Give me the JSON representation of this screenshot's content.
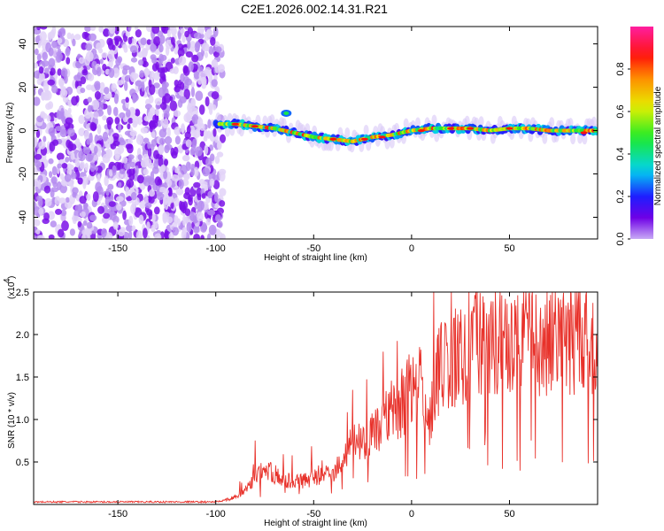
{
  "title": "C2E1.2026.002.14.31.R21",
  "chart_data": [
    {
      "type": "heatmap",
      "title": "C2E1.2026.002.14.31.R21",
      "xlabel": "Height of straight line (km)",
      "ylabel": "Frequency (Hz)",
      "xlim": [
        -193,
        95
      ],
      "ylim": [
        -50,
        48
      ],
      "xticks": [
        -150,
        -100,
        -50,
        0,
        50
      ],
      "yticks": [
        -40,
        -20,
        0,
        20,
        40
      ],
      "colorbar": {
        "label": "Normalized spectral amplitude",
        "range": [
          0.0,
          1.0
        ],
        "ticks": [
          0.0,
          0.2,
          0.4,
          0.6,
          0.8
        ],
        "tick_labels": [
          "0.0",
          "0.2",
          "0.4",
          "0.6",
          "0.8"
        ]
      },
      "features": {
        "noise_region_km": [
          -193,
          -100
        ],
        "ridge": {
          "x": [
            -100,
            -90,
            -80,
            -70,
            -60,
            -50,
            -40,
            -30,
            -20,
            -10,
            0,
            10,
            20,
            30,
            40,
            50,
            60,
            70,
            80,
            95
          ],
          "y": [
            3,
            3,
            2,
            1,
            -1,
            -3,
            -4,
            -5,
            -3,
            -2,
            0,
            1,
            1,
            1,
            0,
            1,
            1,
            0,
            0,
            0
          ]
        }
      }
    },
    {
      "type": "line",
      "xlabel": "Height of straight line (km)",
      "ylabel": "SNR (10 * v/v)",
      "multiplier_label": "(x10",
      "multiplier_exponent": "4",
      "xlim": [
        -193,
        95
      ],
      "ylim": [
        0,
        2.5
      ],
      "xticks": [
        -150,
        -100,
        -50,
        0,
        50
      ],
      "yticks": [
        0.5,
        1.0,
        1.5,
        2.0,
        2.5
      ],
      "ytick_labels": [
        "0.5",
        "1.0",
        "1.5",
        "2.0",
        "2.5"
      ],
      "series": [
        {
          "name": "SNR",
          "color": "#e8312a",
          "x": [
            -193,
            -150,
            -110,
            -100,
            -95,
            -90,
            -85,
            -80,
            -75,
            -70,
            -65,
            -60,
            -55,
            -50,
            -45,
            -40,
            -35,
            -30,
            -25,
            -20,
            -15,
            -10,
            -5,
            0,
            5,
            8,
            10,
            12,
            15,
            20,
            25,
            30,
            40,
            50,
            60,
            70,
            80,
            90,
            95
          ],
          "y": [
            0.03,
            0.03,
            0.03,
            0.03,
            0.05,
            0.08,
            0.15,
            0.3,
            0.4,
            0.35,
            0.3,
            0.25,
            0.28,
            0.3,
            0.4,
            0.35,
            0.55,
            0.7,
            0.75,
            0.8,
            0.95,
            1.1,
            1.2,
            1.35,
            1.45,
            0.8,
            1.1,
            1.5,
            1.6,
            1.7,
            1.75,
            1.85,
            1.9,
            1.95,
            1.9,
            1.95,
            1.9,
            1.95,
            1.95
          ]
        }
      ]
    }
  ]
}
